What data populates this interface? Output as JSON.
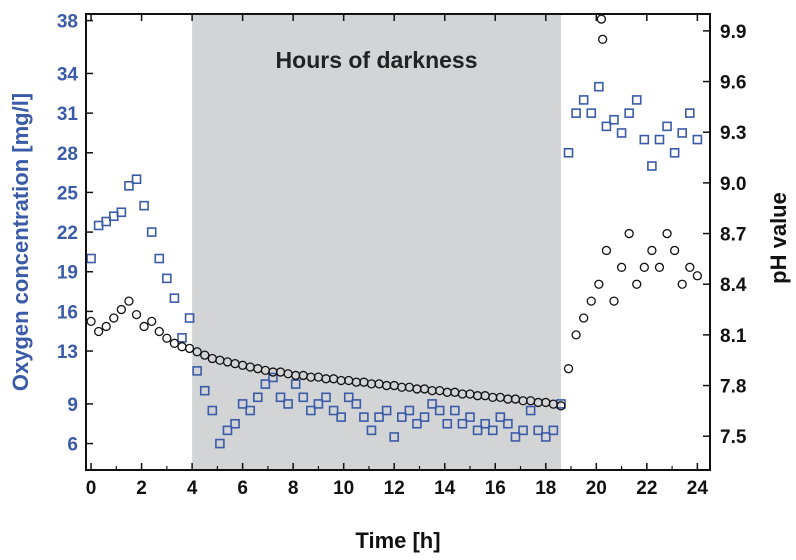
{
  "chart_data": {
    "type": "scatter",
    "title": "",
    "xlabel": "Time [h]",
    "ylabel_left": "Oxygen concentration [mg/l]",
    "ylabel_right": "pH value",
    "xlim": [
      -0.2,
      24.5
    ],
    "ylim_left": [
      4,
      38.5
    ],
    "ylim_right": [
      7.3,
      10.0
    ],
    "x_ticks": [
      "0",
      "2",
      "4",
      "6",
      "8",
      "10",
      "12",
      "14",
      "16",
      "18",
      "20",
      "22",
      "24"
    ],
    "y_left_ticks": [
      "6",
      "9",
      "13",
      "16",
      "19",
      "22",
      "25",
      "28",
      "31",
      "34",
      "38"
    ],
    "y_right_ticks": [
      "7.5",
      "7.8",
      "8.1",
      "8.4",
      "8.7",
      "9.0",
      "9.3",
      "9.6",
      "9.9"
    ],
    "grid": false,
    "legend": "none",
    "shaded_region": {
      "x_start": 4.0,
      "x_end": 18.6,
      "label": "Hours of darkness",
      "color": "#d3d4d6"
    },
    "series": [
      {
        "axis": "left",
        "marker": "open-square",
        "color": "#3a5ba8",
        "x": [
          0.0,
          0.3,
          0.6,
          0.9,
          1.2,
          1.5,
          1.8,
          2.1,
          2.4,
          2.7,
          3.0,
          3.3,
          3.6,
          3.9,
          4.2,
          4.5,
          4.8,
          5.1,
          5.4,
          5.7,
          6.0,
          6.3,
          6.6,
          6.9,
          7.2,
          7.5,
          7.8,
          8.1,
          8.4,
          8.7,
          9.0,
          9.3,
          9.6,
          9.9,
          10.2,
          10.5,
          10.8,
          11.1,
          11.4,
          11.7,
          12.0,
          12.3,
          12.6,
          12.9,
          13.2,
          13.5,
          13.8,
          14.1,
          14.4,
          14.7,
          15.0,
          15.3,
          15.6,
          15.9,
          16.2,
          16.5,
          16.8,
          17.1,
          17.4,
          17.7,
          18.0,
          18.3,
          18.6,
          18.9,
          19.2,
          19.5,
          19.8,
          20.1,
          20.4,
          20.7,
          21.0,
          21.3,
          21.6,
          21.9,
          22.2,
          22.5,
          22.8,
          23.1,
          23.4,
          23.7,
          24.0
        ],
        "y": [
          20.0,
          22.5,
          22.8,
          23.2,
          23.5,
          25.5,
          26.0,
          24.0,
          22.0,
          20.0,
          18.5,
          17.0,
          14.0,
          15.5,
          11.5,
          10.0,
          8.5,
          6.0,
          7.0,
          7.5,
          9.0,
          8.5,
          9.5,
          10.5,
          11.0,
          9.5,
          9.0,
          10.5,
          9.5,
          8.5,
          9.0,
          9.5,
          8.5,
          8.0,
          9.5,
          9.0,
          8.0,
          7.0,
          8.0,
          8.5,
          6.5,
          8.0,
          8.5,
          7.5,
          8.0,
          9.0,
          8.5,
          7.5,
          8.5,
          7.5,
          8.0,
          7.0,
          7.5,
          7.0,
          8.0,
          7.5,
          6.5,
          7.0,
          8.5,
          7.0,
          6.5,
          7.0,
          9.0,
          28.0,
          31.0,
          32.0,
          31.0,
          33.0,
          30.0,
          30.5,
          29.5,
          31.0,
          32.0,
          29.0,
          27.0,
          29.0,
          30.0,
          28.0,
          29.5,
          31.0,
          29.0
        ]
      },
      {
        "axis": "right",
        "marker": "open-circle",
        "color": "#111111",
        "x": [
          0.0,
          0.3,
          0.6,
          0.9,
          1.2,
          1.5,
          1.8,
          2.1,
          2.4,
          2.7,
          3.0,
          3.3,
          3.6,
          3.9,
          4.2,
          4.5,
          4.8,
          5.1,
          5.4,
          5.7,
          6.0,
          6.3,
          6.6,
          6.9,
          7.2,
          7.5,
          7.8,
          8.1,
          8.4,
          8.7,
          9.0,
          9.3,
          9.6,
          9.9,
          10.2,
          10.5,
          10.8,
          11.1,
          11.4,
          11.7,
          12.0,
          12.3,
          12.6,
          12.9,
          13.2,
          13.5,
          13.8,
          14.1,
          14.4,
          14.7,
          15.0,
          15.3,
          15.6,
          15.9,
          16.2,
          16.5,
          16.8,
          17.1,
          17.4,
          17.7,
          18.0,
          18.3,
          18.6,
          18.9,
          19.2,
          19.5,
          19.8,
          20.1,
          20.4,
          20.7,
          21.0,
          21.3,
          21.6,
          21.9,
          22.2,
          22.5,
          22.8,
          23.1,
          23.4,
          23.7,
          24.0
        ],
        "y": [
          8.18,
          8.12,
          8.15,
          8.2,
          8.25,
          8.3,
          8.22,
          8.15,
          8.18,
          8.12,
          8.08,
          8.05,
          8.03,
          8.02,
          8.0,
          7.98,
          7.96,
          7.95,
          7.94,
          7.93,
          7.92,
          7.91,
          7.9,
          7.89,
          7.88,
          7.88,
          7.87,
          7.86,
          7.86,
          7.85,
          7.85,
          7.84,
          7.84,
          7.83,
          7.83,
          7.82,
          7.82,
          7.81,
          7.81,
          7.8,
          7.8,
          7.79,
          7.79,
          7.78,
          7.78,
          7.77,
          7.77,
          7.76,
          7.76,
          7.75,
          7.75,
          7.74,
          7.74,
          7.73,
          7.73,
          7.72,
          7.72,
          7.71,
          7.71,
          7.7,
          7.7,
          7.69,
          7.68,
          7.9,
          8.1,
          8.2,
          8.3,
          8.4,
          8.6,
          8.3,
          8.5,
          8.7,
          8.4,
          8.5,
          8.6,
          8.5,
          8.7,
          8.6,
          8.4,
          8.5,
          8.45
        ]
      }
    ],
    "series_extra_points_right": {
      "x": [
        20.2,
        20.25
      ],
      "y": [
        9.97,
        9.85
      ]
    }
  }
}
